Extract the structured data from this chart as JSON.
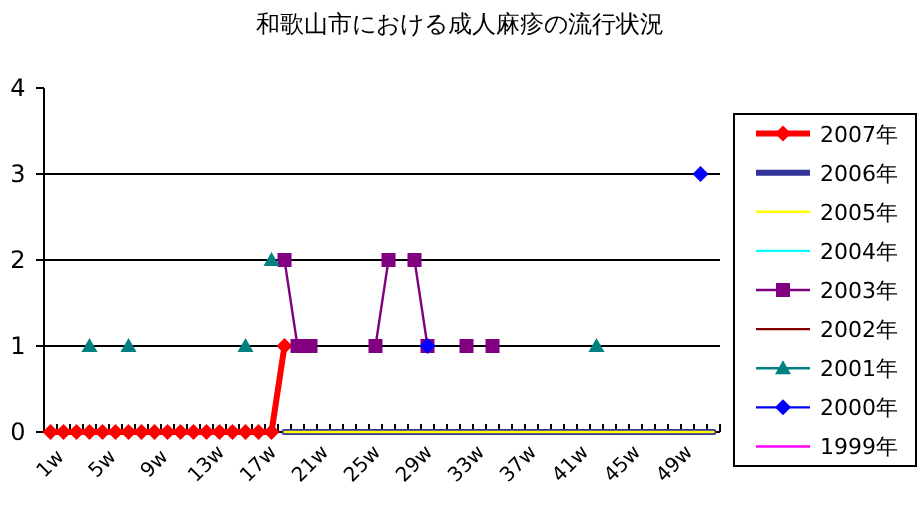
{
  "chart_data": {
    "type": "line",
    "title": "和歌山市における成人麻疹の流行状況",
    "categories": [
      "1w",
      null,
      null,
      null,
      "5w",
      null,
      null,
      null,
      "9w",
      null,
      null,
      null,
      "13w",
      null,
      null,
      null,
      "17w",
      null,
      null,
      null,
      "21w",
      null,
      null,
      null,
      "25w",
      null,
      null,
      null,
      "29w",
      null,
      null,
      null,
      "33w",
      null,
      null,
      null,
      "37w",
      null,
      null,
      null,
      "41w",
      null,
      null,
      null,
      "45w",
      null,
      null,
      null,
      "49w",
      null,
      null,
      null
    ],
    "ylim": [
      0,
      4
    ],
    "yticks": [
      0,
      1,
      2,
      3,
      4
    ],
    "grid": "y",
    "legend": "right",
    "series": [
      {
        "name": "2007年",
        "color": "#ff0000",
        "marker": "diamond",
        "values": [
          0,
          0,
          0,
          0,
          0,
          0,
          0,
          0,
          0,
          0,
          0,
          0,
          0,
          0,
          0,
          0,
          0,
          0,
          1,
          null,
          null,
          null,
          null,
          null,
          null,
          null,
          null,
          null,
          null,
          null,
          null,
          null,
          null,
          null,
          null,
          null,
          null,
          null,
          null,
          null,
          null,
          null,
          null,
          null,
          null,
          null,
          null,
          null,
          null,
          null,
          null,
          null
        ]
      },
      {
        "name": "2006年",
        "color": "#333399",
        "values": [
          null,
          null,
          null,
          null,
          null,
          null,
          null,
          null,
          null,
          null,
          null,
          null,
          null,
          null,
          null,
          null,
          null,
          null,
          0,
          0,
          0,
          0,
          0,
          0,
          0,
          0,
          0,
          0,
          0,
          0,
          0,
          0,
          0,
          0,
          0,
          0,
          0,
          0,
          0,
          0,
          0,
          0,
          0,
          0,
          0,
          0,
          0,
          0,
          0,
          0,
          0,
          0
        ]
      },
      {
        "name": "2005年",
        "color": "#ffff00",
        "values": [
          null,
          null,
          null,
          null,
          null,
          null,
          null,
          null,
          null,
          null,
          null,
          null,
          null,
          null,
          null,
          null,
          null,
          null,
          0,
          0,
          0,
          0,
          0,
          0,
          0,
          0,
          0,
          0,
          0,
          0,
          0,
          0,
          0,
          0,
          0,
          0,
          0,
          0,
          0,
          0,
          0,
          0,
          0,
          0,
          0,
          0,
          0,
          0,
          0,
          0,
          0,
          0
        ]
      },
      {
        "name": "2004年",
        "color": "#00ffff",
        "values": [
          null,
          null,
          null,
          null,
          null,
          null,
          null,
          null,
          null,
          null,
          null,
          null,
          null,
          null,
          null,
          null,
          null,
          null,
          null,
          null,
          null,
          null,
          null,
          null,
          null,
          null,
          null,
          null,
          null,
          null,
          null,
          null,
          null,
          null,
          null,
          null,
          null,
          null,
          null,
          null,
          null,
          null,
          null,
          null,
          null,
          null,
          null,
          null,
          null,
          null,
          null,
          null
        ]
      },
      {
        "name": "2003年",
        "color": "#800080",
        "marker": "square",
        "values": [
          null,
          null,
          null,
          null,
          null,
          null,
          null,
          null,
          null,
          null,
          null,
          null,
          null,
          null,
          null,
          null,
          null,
          null,
          2,
          1,
          1,
          null,
          null,
          null,
          null,
          1,
          2,
          null,
          2,
          1,
          null,
          null,
          1,
          null,
          1,
          null,
          null,
          null,
          null,
          null,
          null,
          null,
          null,
          null,
          null,
          null,
          null,
          null,
          null,
          null,
          null,
          null
        ]
      },
      {
        "name": "2002年",
        "color": "#800000",
        "values": [
          null,
          null,
          null,
          null,
          null,
          null,
          null,
          null,
          null,
          null,
          null,
          null,
          null,
          null,
          null,
          null,
          null,
          null,
          null,
          null,
          null,
          null,
          null,
          null,
          null,
          null,
          null,
          null,
          null,
          null,
          null,
          null,
          null,
          null,
          null,
          null,
          null,
          null,
          null,
          null,
          null,
          null,
          null,
          null,
          null,
          null,
          null,
          null,
          null,
          null,
          null,
          null
        ]
      },
      {
        "name": "2001年",
        "type": "scatter",
        "color": "#008080",
        "marker": "triangle",
        "values": [
          null,
          null,
          null,
          1,
          null,
          null,
          1,
          null,
          null,
          null,
          null,
          null,
          null,
          null,
          null,
          1,
          null,
          2,
          null,
          null,
          null,
          null,
          null,
          null,
          null,
          null,
          null,
          null,
          null,
          null,
          null,
          null,
          null,
          null,
          null,
          null,
          null,
          null,
          null,
          null,
          null,
          null,
          1,
          null,
          null,
          null,
          null,
          null,
          null,
          null,
          null,
          null
        ]
      },
      {
        "name": "2000年",
        "type": "scatter",
        "color": "#0000ff",
        "marker": "diamond",
        "values": [
          null,
          null,
          null,
          null,
          null,
          null,
          null,
          null,
          null,
          null,
          null,
          null,
          null,
          null,
          null,
          null,
          null,
          null,
          null,
          null,
          null,
          null,
          null,
          null,
          null,
          null,
          null,
          null,
          null,
          1,
          null,
          null,
          null,
          null,
          null,
          null,
          null,
          null,
          null,
          null,
          null,
          null,
          null,
          null,
          null,
          null,
          null,
          null,
          null,
          null,
          3,
          null
        ]
      },
      {
        "name": "1999年",
        "color": "#ff00ff",
        "values": [
          null,
          null,
          null,
          null,
          null,
          null,
          null,
          null,
          null,
          null,
          null,
          null,
          null,
          null,
          null,
          null,
          null,
          null,
          null,
          null,
          null,
          null,
          null,
          null,
          null,
          null,
          null,
          null,
          null,
          null,
          null,
          null,
          null,
          null,
          null,
          null,
          null,
          null,
          null,
          null,
          null,
          null,
          null,
          null,
          null,
          null,
          null,
          null,
          null,
          null,
          null,
          null
        ]
      }
    ]
  }
}
